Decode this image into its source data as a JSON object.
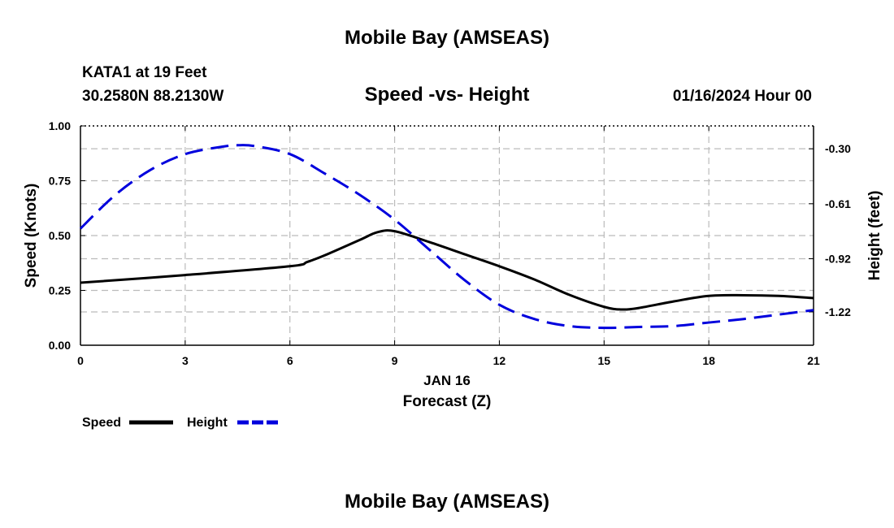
{
  "chart_data": {
    "type": "line",
    "title": "Mobile Bay (AMSEAS)",
    "footer_title": "Mobile Bay (AMSEAS)",
    "station": "KATA1 at 19 Feet",
    "location": "30.2580N  88.2130W",
    "subtitle": "Speed -vs- Height",
    "datetime": "01/16/2024 Hour 00",
    "xlabel": "Forecast (Z)",
    "xdate_label": "JAN 16",
    "ylabel": "Speed (Knots)",
    "y2label": "Height (feet)",
    "xlim": [
      0,
      21
    ],
    "ylim": [
      0,
      1
    ],
    "y2lim": [
      -1.408,
      -0.171
    ],
    "xticks": [
      "0",
      "3",
      "6",
      "9",
      "12",
      "15",
      "18",
      "21"
    ],
    "xtick_values": [
      0,
      3,
      6,
      9,
      12,
      15,
      18,
      21
    ],
    "yticks": [
      "0.00",
      "0.25",
      "0.50",
      "0.75",
      "1.00"
    ],
    "ytick_values": [
      0,
      0.25,
      0.5,
      0.75,
      1.0
    ],
    "y2ticks": [
      "-0.30",
      "-0.61",
      "-0.92",
      "-1.22"
    ],
    "y2tick_values": [
      -0.3,
      -0.61,
      -0.92,
      -1.22
    ],
    "grid": true,
    "legend_position": "bottom-left",
    "series": [
      {
        "name": "Speed",
        "axis": "left",
        "color": "#000000",
        "style": "solid",
        "x": [
          0,
          3,
          6,
          6.5,
          7,
          8,
          8.5,
          9,
          10,
          11,
          12,
          13,
          14,
          15,
          15.5,
          16,
          17,
          18,
          19,
          20,
          21
        ],
        "y": [
          0.285,
          0.32,
          0.36,
          0.38,
          0.41,
          0.48,
          0.515,
          0.52,
          0.47,
          0.415,
          0.36,
          0.3,
          0.23,
          0.175,
          0.163,
          0.17,
          0.2,
          0.225,
          0.228,
          0.225,
          0.215
        ]
      },
      {
        "name": "Height",
        "axis": "right",
        "color": "#0000dd",
        "style": "dashed",
        "x": [
          0,
          1,
          2,
          3,
          4,
          4.5,
          5,
          6,
          7,
          8,
          9,
          10,
          11,
          12,
          13,
          14,
          15,
          16,
          17,
          18,
          19,
          20,
          21
        ],
        "y": [
          -0.75,
          -0.56,
          -0.42,
          -0.33,
          -0.29,
          -0.28,
          -0.285,
          -0.33,
          -0.44,
          -0.56,
          -0.7,
          -0.87,
          -1.04,
          -1.18,
          -1.26,
          -1.3,
          -1.31,
          -1.305,
          -1.3,
          -1.28,
          -1.26,
          -1.235,
          -1.21
        ]
      }
    ]
  }
}
